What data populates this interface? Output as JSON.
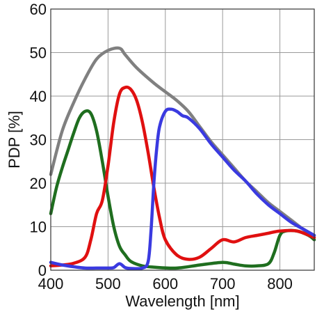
{
  "chart_data": {
    "type": "line",
    "title": "",
    "xlabel": "Wavelength [nm]",
    "ylabel": "PDP [%]",
    "xlim": [
      400,
      860
    ],
    "ylim": [
      0,
      60
    ],
    "x_ticks": [
      400,
      500,
      600,
      700,
      800
    ],
    "y_ticks": [
      0,
      10,
      20,
      30,
      40,
      50,
      60
    ],
    "grid": true,
    "legend": "none",
    "series": [
      {
        "color": "#808080",
        "x": [
          400,
          420,
          440,
          460,
          480,
          500,
          520,
          530,
          550,
          580,
          600,
          620,
          640,
          660,
          680,
          700,
          720,
          740,
          760,
          780,
          800,
          820,
          840,
          860
        ],
        "y": [
          22,
          32,
          38.5,
          44,
          48.5,
          50.5,
          51,
          49.5,
          46.5,
          43,
          41,
          39,
          36.5,
          33,
          29.5,
          26.5,
          23.5,
          20.5,
          18,
          15.5,
          13.5,
          11.5,
          9.5,
          8
        ]
      },
      {
        "color": "#1f6e1f",
        "x": [
          400,
          410,
          420,
          430,
          440,
          450,
          460,
          470,
          480,
          490,
          500,
          510,
          520,
          530,
          540,
          560,
          580,
          620,
          660,
          700,
          720,
          740,
          760,
          780,
          790,
          800,
          810,
          830,
          850,
          860
        ],
        "y": [
          13,
          19,
          23.5,
          27.5,
          31.5,
          35,
          36.5,
          36,
          32,
          25,
          17,
          10,
          5.5,
          3.5,
          2,
          1,
          0.7,
          0.5,
          1.2,
          1.8,
          1.4,
          1,
          1,
          1.5,
          4,
          8,
          9,
          9,
          8,
          7
        ]
      },
      {
        "color": "#e01010",
        "x": [
          400,
          420,
          440,
          460,
          470,
          480,
          490,
          500,
          510,
          520,
          530,
          540,
          550,
          560,
          570,
          580,
          590,
          600,
          620,
          640,
          660,
          680,
          700,
          720,
          740,
          760,
          780,
          800,
          830,
          860
        ],
        "y": [
          1,
          1.2,
          1.6,
          3,
          7,
          13,
          16,
          24,
          34,
          40.5,
          42,
          41.5,
          39,
          34,
          27,
          19,
          12,
          7,
          3.5,
          2.5,
          3,
          5,
          7,
          6.5,
          7.5,
          8,
          8.5,
          9,
          9,
          7.5
        ]
      },
      {
        "color": "#3a3ae0",
        "x": [
          400,
          420,
          440,
          460,
          480,
          500,
          510,
          520,
          530,
          540,
          560,
          570,
          575,
          580,
          585,
          590,
          600,
          610,
          620,
          630,
          640,
          660,
          680,
          700,
          720,
          740,
          760,
          780,
          800,
          820,
          840,
          860
        ],
        "y": [
          1.8,
          1.2,
          0.8,
          0.5,
          0.5,
          0.5,
          0.6,
          1.5,
          0.6,
          0.4,
          0.5,
          2,
          9,
          20,
          28,
          33,
          36.5,
          37,
          36.5,
          35.5,
          35,
          32.5,
          29,
          26,
          23,
          20.5,
          17.5,
          15,
          13,
          11,
          9.5,
          8
        ]
      }
    ]
  }
}
